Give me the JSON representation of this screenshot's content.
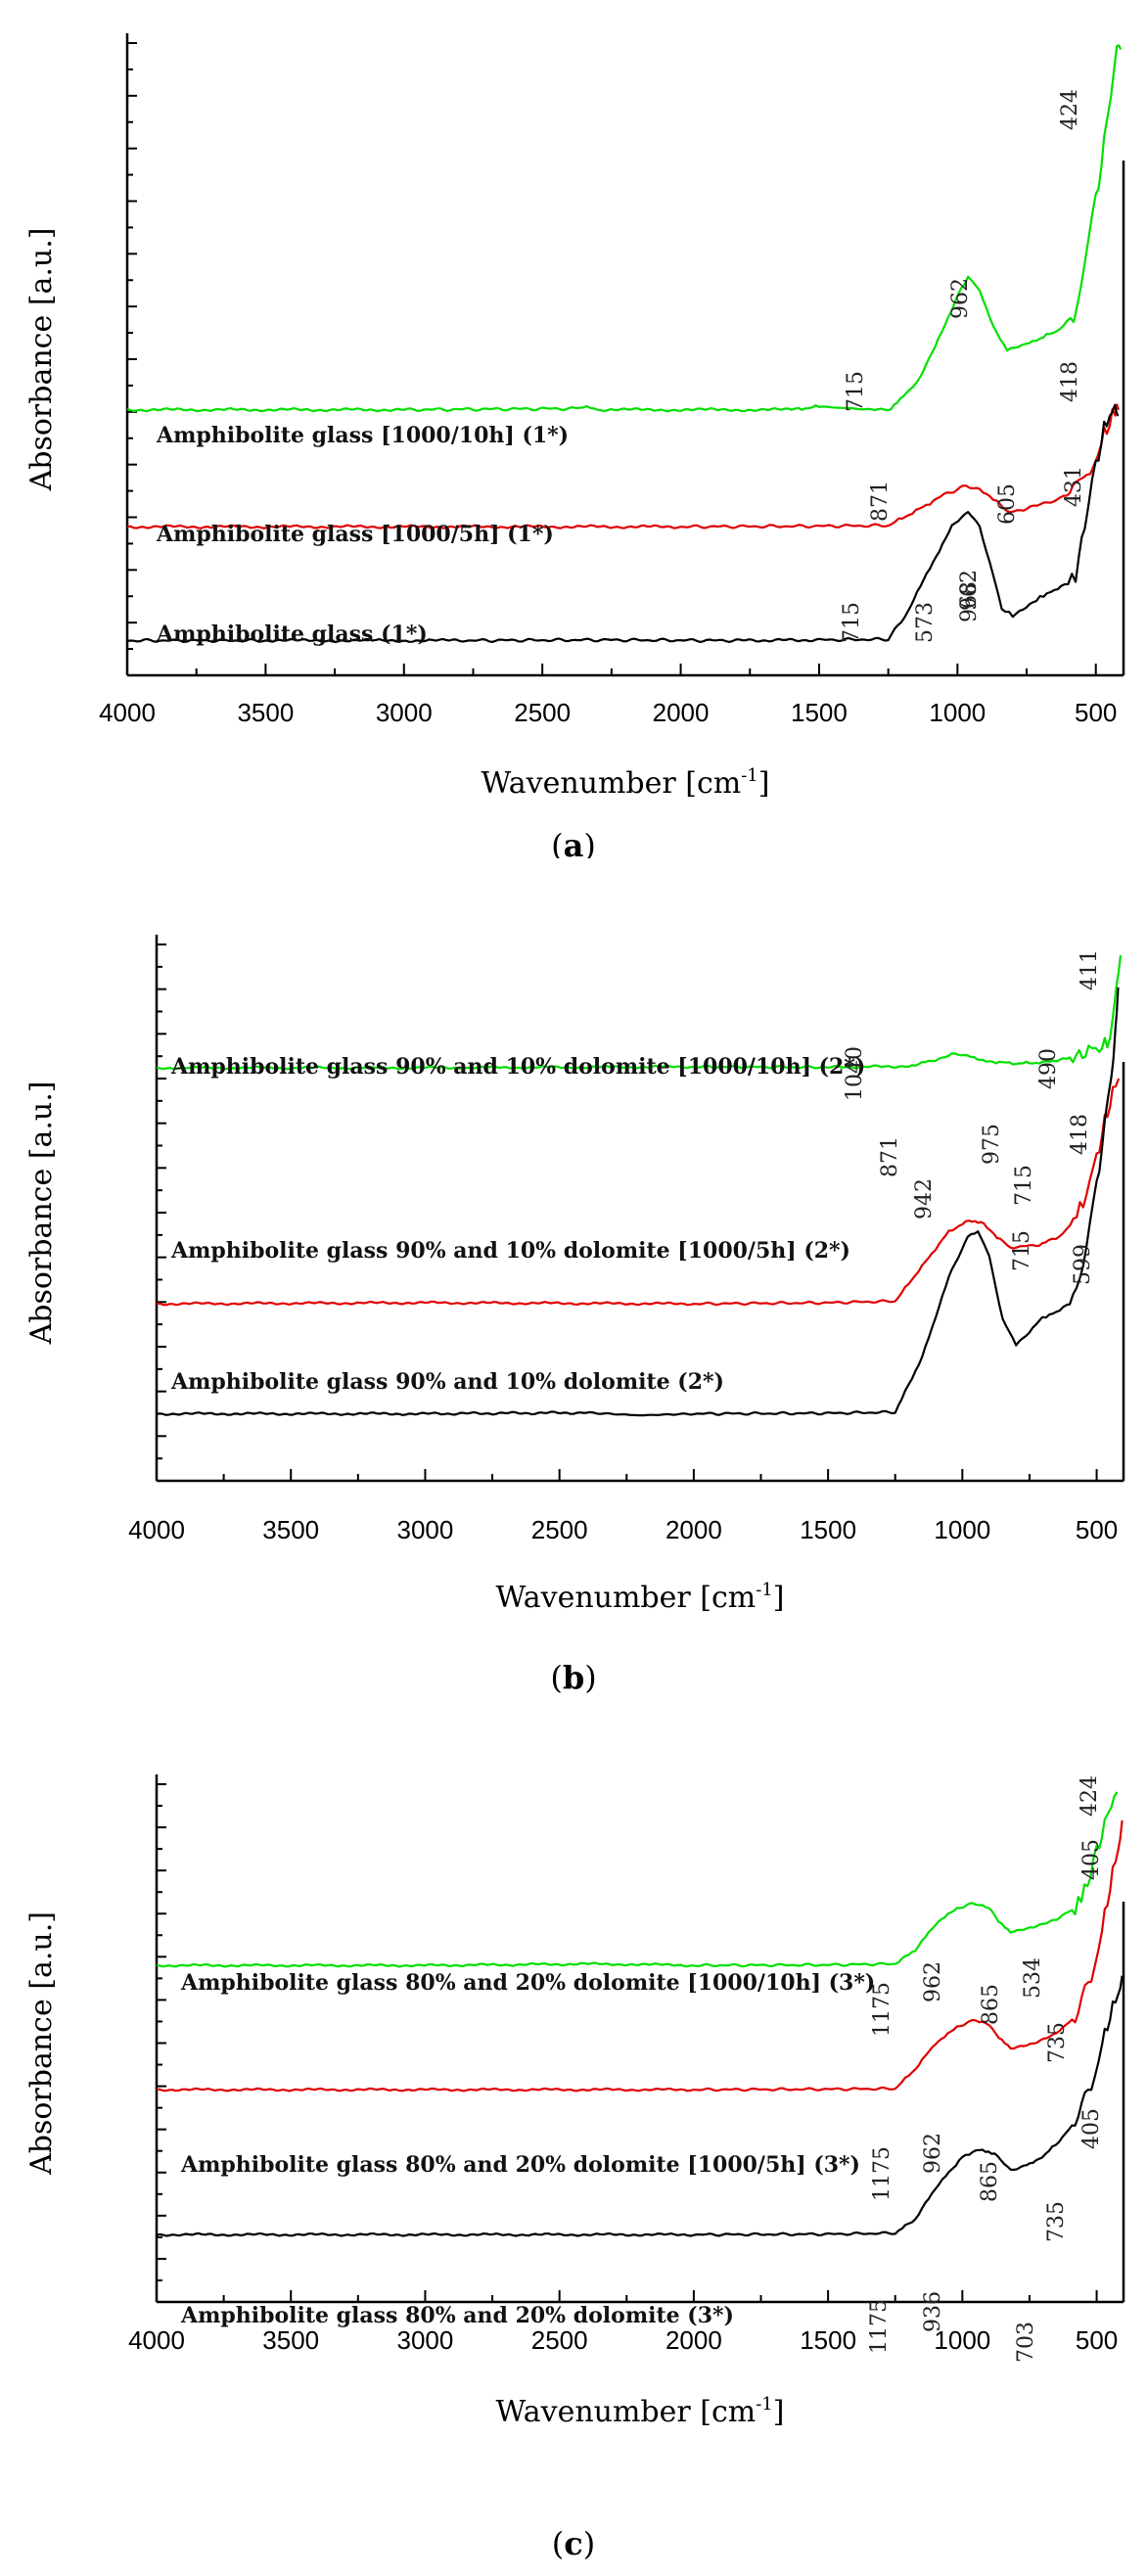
{
  "chart_data": [
    {
      "type": "line",
      "panel": "a",
      "panel_label": "a",
      "xlabel": "Wavenumber [cm",
      "xlabel_sup": "-1",
      "xlabel_end": "]",
      "ylabel": "Absorbance [a.u.]",
      "xlim": [
        4000,
        400
      ],
      "xticks": [
        "4000",
        "3500",
        "3000",
        "2500",
        "2000",
        "1500",
        "1000",
        "500"
      ],
      "ylim": [
        0,
        10
      ],
      "series": [
        {
          "name": "Amphibolite glass [1000/10h] (1*)",
          "color": "#00e000",
          "baseline": 4.2,
          "points": [
            [
              4000,
              4.2
            ],
            [
              3000,
              4.2
            ],
            [
              2380,
              4.22
            ],
            [
              2340,
              4.25
            ],
            [
              2300,
              4.2
            ],
            [
              1600,
              4.2
            ],
            [
              1500,
              4.25
            ],
            [
              1300,
              4.2
            ],
            [
              1240,
              4.22
            ],
            [
              1150,
              4.6
            ],
            [
              1080,
              5.2
            ],
            [
              1000,
              6.0
            ],
            [
              962,
              6.3
            ],
            [
              920,
              6.1
            ],
            [
              870,
              5.5
            ],
            [
              820,
              5.15
            ],
            [
              780,
              5.2
            ],
            [
              715,
              5.3
            ],
            [
              640,
              5.45
            ],
            [
              580,
              5.7
            ],
            [
              540,
              6.5
            ],
            [
              500,
              7.5
            ],
            [
              470,
              8.4
            ],
            [
              445,
              9.1
            ],
            [
              424,
              9.85
            ],
            [
              410,
              9.9
            ]
          ]
        },
        {
          "name": "Amphibolite glass [1000/5h] (1*)",
          "color": "#e00000",
          "baseline": 2.35,
          "points": [
            [
              4000,
              2.35
            ],
            [
              3000,
              2.35
            ],
            [
              2000,
              2.35
            ],
            [
              1500,
              2.36
            ],
            [
              1250,
              2.37
            ],
            [
              1150,
              2.6
            ],
            [
              1050,
              2.85
            ],
            [
              968,
              3.0
            ],
            [
              920,
              2.95
            ],
            [
              871,
              2.8
            ],
            [
              820,
              2.6
            ],
            [
              760,
              2.62
            ],
            [
              700,
              2.7
            ],
            [
              640,
              2.78
            ],
            [
              605,
              2.85
            ],
            [
              560,
              3.0
            ],
            [
              520,
              3.3
            ],
            [
              480,
              3.7
            ],
            [
              450,
              4.0
            ],
            [
              430,
              4.15
            ],
            [
              418,
              4.2
            ]
          ]
        },
        {
          "name": "Amphibolite glass (1*)",
          "color": "#000000",
          "baseline": 0.55,
          "points": [
            [
              4000,
              0.55
            ],
            [
              3500,
              0.55
            ],
            [
              2800,
              0.55
            ],
            [
              2300,
              0.56
            ],
            [
              1800,
              0.55
            ],
            [
              1500,
              0.56
            ],
            [
              1250,
              0.57
            ],
            [
              1180,
              1.0
            ],
            [
              1100,
              1.7
            ],
            [
              1020,
              2.35
            ],
            [
              962,
              2.6
            ],
            [
              920,
              2.35
            ],
            [
              871,
              1.6
            ],
            [
              840,
              1.05
            ],
            [
              800,
              0.95
            ],
            [
              715,
              1.2
            ],
            [
              650,
              1.35
            ],
            [
              600,
              1.45
            ],
            [
              573,
              1.6
            ],
            [
              540,
              2.3
            ],
            [
              500,
              3.3
            ],
            [
              470,
              3.9
            ],
            [
              450,
              4.15
            ],
            [
              431,
              4.2
            ],
            [
              420,
              4.1
            ]
          ]
        }
      ],
      "series_labels": [
        "Amphibolite glass [1000/10h] (1*)",
        "Amphibolite glass [1000/5h] (1*)",
        "Amphibolite glass (1*)"
      ],
      "annotations": [
        "424",
        "962",
        "715",
        "418",
        "968",
        "871",
        "605",
        "431",
        "962",
        "715",
        "573"
      ]
    },
    {
      "type": "line",
      "panel": "b",
      "panel_label": "b",
      "xlabel": "Wavenumber [cm",
      "xlabel_sup": "-1",
      "xlabel_end": "]",
      "ylabel": "Absorbance [a.u.]",
      "xlim": [
        4000,
        400
      ],
      "xticks": [
        "4000",
        "3500",
        "3000",
        "2500",
        "2000",
        "1500",
        "1000",
        "500"
      ],
      "ylim": [
        0,
        10
      ],
      "series": [
        {
          "name": "Amphibolite glass 90% and 10% dolomite [1000/10h] (2*)",
          "color": "#00e000",
          "points": [
            [
              4000,
              7.7
            ],
            [
              3000,
              7.7
            ],
            [
              2000,
              7.72
            ],
            [
              1500,
              7.71
            ],
            [
              1200,
              7.73
            ],
            [
              1100,
              7.85
            ],
            [
              1040,
              7.95
            ],
            [
              980,
              7.92
            ],
            [
              900,
              7.82
            ],
            [
              800,
              7.78
            ],
            [
              700,
              7.8
            ],
            [
              600,
              7.88
            ],
            [
              530,
              8.0
            ],
            [
              490,
              8.1
            ],
            [
              460,
              8.15
            ],
            [
              440,
              8.5
            ],
            [
              425,
              9.4
            ],
            [
              411,
              9.8
            ]
          ]
        },
        {
          "name": "Amphibolite glass 90% and 10% dolomite [1000/5h] (2*)",
          "color": "#e00000",
          "points": [
            [
              4000,
              3.3
            ],
            [
              3000,
              3.32
            ],
            [
              2000,
              3.3
            ],
            [
              1500,
              3.32
            ],
            [
              1250,
              3.35
            ],
            [
              1150,
              4.0
            ],
            [
              1050,
              4.65
            ],
            [
              975,
              4.85
            ],
            [
              920,
              4.8
            ],
            [
              871,
              4.55
            ],
            [
              820,
              4.35
            ],
            [
              715,
              4.4
            ],
            [
              640,
              4.55
            ],
            [
              599,
              4.75
            ],
            [
              550,
              5.2
            ],
            [
              500,
              6.0
            ],
            [
              470,
              6.7
            ],
            [
              440,
              7.2
            ],
            [
              418,
              7.5
            ]
          ]
        },
        {
          "name": "Amphibolite glass 90% and 10% dolomite (2*)",
          "color": "#000000",
          "points": [
            [
              4000,
              1.25
            ],
            [
              3000,
              1.25
            ],
            [
              2400,
              1.27
            ],
            [
              2200,
              1.22
            ],
            [
              2000,
              1.25
            ],
            [
              1500,
              1.26
            ],
            [
              1250,
              1.28
            ],
            [
              1150,
              2.3
            ],
            [
              1050,
              3.8
            ],
            [
              980,
              4.55
            ],
            [
              942,
              4.65
            ],
            [
              900,
              4.2
            ],
            [
              850,
              3.0
            ],
            [
              800,
              2.55
            ],
            [
              750,
              2.75
            ],
            [
              715,
              3.0
            ],
            [
              650,
              3.15
            ],
            [
              600,
              3.3
            ],
            [
              550,
              4.1
            ],
            [
              500,
              5.5
            ],
            [
              470,
              6.6
            ],
            [
              445,
              7.5
            ],
            [
              430,
              8.5
            ],
            [
              420,
              9.2
            ]
          ]
        }
      ],
      "series_labels": [
        "Amphibolite glass 90% and 10% dolomite [1000/10h] (2*)",
        "Amphibolite glass 90% and 10% dolomite [1000/5h] (2*)",
        "Amphibolite glass 90% and 10% dolomite (2*)"
      ],
      "annotations": [
        "411",
        "1040",
        "490",
        "418",
        "975",
        "871",
        "715",
        "599",
        "942",
        "715"
      ]
    },
    {
      "type": "line",
      "panel": "c",
      "panel_label": "c",
      "xlabel": "Wavenumber [cm",
      "xlabel_sup": "-1",
      "xlabel_end": "]",
      "ylabel": "Absorbance [a.u.]",
      "xlim": [
        4000,
        400
      ],
      "xticks": [
        "4000",
        "3500",
        "3000",
        "2500",
        "2000",
        "1500",
        "1000",
        "500"
      ],
      "ylim": [
        0,
        10
      ],
      "series": [
        {
          "name": "Amphibolite glass 80% and 20% dolomite [1000/10h] (3*)",
          "color": "#00e000",
          "points": [
            [
              4000,
              6.5
            ],
            [
              3000,
              6.5
            ],
            [
              2350,
              6.53
            ],
            [
              2000,
              6.5
            ],
            [
              1500,
              6.51
            ],
            [
              1250,
              6.53
            ],
            [
              1175,
              6.8
            ],
            [
              1100,
              7.3
            ],
            [
              1020,
              7.6
            ],
            [
              962,
              7.7
            ],
            [
              900,
              7.6
            ],
            [
              865,
              7.35
            ],
            [
              820,
              7.15
            ],
            [
              735,
              7.25
            ],
            [
              650,
              7.4
            ],
            [
              580,
              7.6
            ],
            [
              534,
              8.1
            ],
            [
              500,
              8.7
            ],
            [
              470,
              9.2
            ],
            [
              445,
              9.5
            ],
            [
              424,
              9.85
            ]
          ]
        },
        {
          "name": "Amphibolite glass 80% and 20% dolomite [1000/5h] (3*)",
          "color": "#e00000",
          "points": [
            [
              4000,
              4.1
            ],
            [
              3000,
              4.1
            ],
            [
              2000,
              4.1
            ],
            [
              1500,
              4.11
            ],
            [
              1250,
              4.12
            ],
            [
              1175,
              4.5
            ],
            [
              1100,
              5.0
            ],
            [
              1020,
              5.3
            ],
            [
              962,
              5.45
            ],
            [
              900,
              5.35
            ],
            [
              865,
              5.1
            ],
            [
              820,
              4.9
            ],
            [
              735,
              5.0
            ],
            [
              650,
              5.2
            ],
            [
              580,
              5.5
            ],
            [
              520,
              6.3
            ],
            [
              480,
              7.2
            ],
            [
              450,
              8.0
            ],
            [
              420,
              8.8
            ],
            [
              405,
              9.3
            ]
          ]
        },
        {
          "name": "Amphibolite glass 80% and 20% dolomite (3*)",
          "color": "#000000",
          "points": [
            [
              4000,
              1.3
            ],
            [
              3000,
              1.3
            ],
            [
              2000,
              1.3
            ],
            [
              1500,
              1.31
            ],
            [
              1250,
              1.33
            ],
            [
              1175,
              1.6
            ],
            [
              1100,
              2.2
            ],
            [
              1000,
              2.8
            ],
            [
              936,
              2.95
            ],
            [
              880,
              2.85
            ],
            [
              820,
              2.55
            ],
            [
              760,
              2.65
            ],
            [
              703,
              2.8
            ],
            [
              640,
              3.1
            ],
            [
              580,
              3.5
            ],
            [
              520,
              4.2
            ],
            [
              480,
              5.0
            ],
            [
              450,
              5.5
            ],
            [
              420,
              6.0
            ],
            [
              405,
              6.3
            ]
          ]
        }
      ],
      "series_labels": [
        "Amphibolite glass 80% and 20% dolomite [1000/10h] (3*)",
        "Amphibolite glass 80% and 20% dolomite [1000/5h] (3*)",
        "Amphibolite glass 80% and 20% dolomite (3*)"
      ],
      "annotations": [
        "424",
        "405",
        "1175",
        "962",
        "865",
        "735",
        "534",
        "1175",
        "962",
        "865",
        "735",
        "405",
        "1175",
        "936",
        "703"
      ]
    }
  ]
}
